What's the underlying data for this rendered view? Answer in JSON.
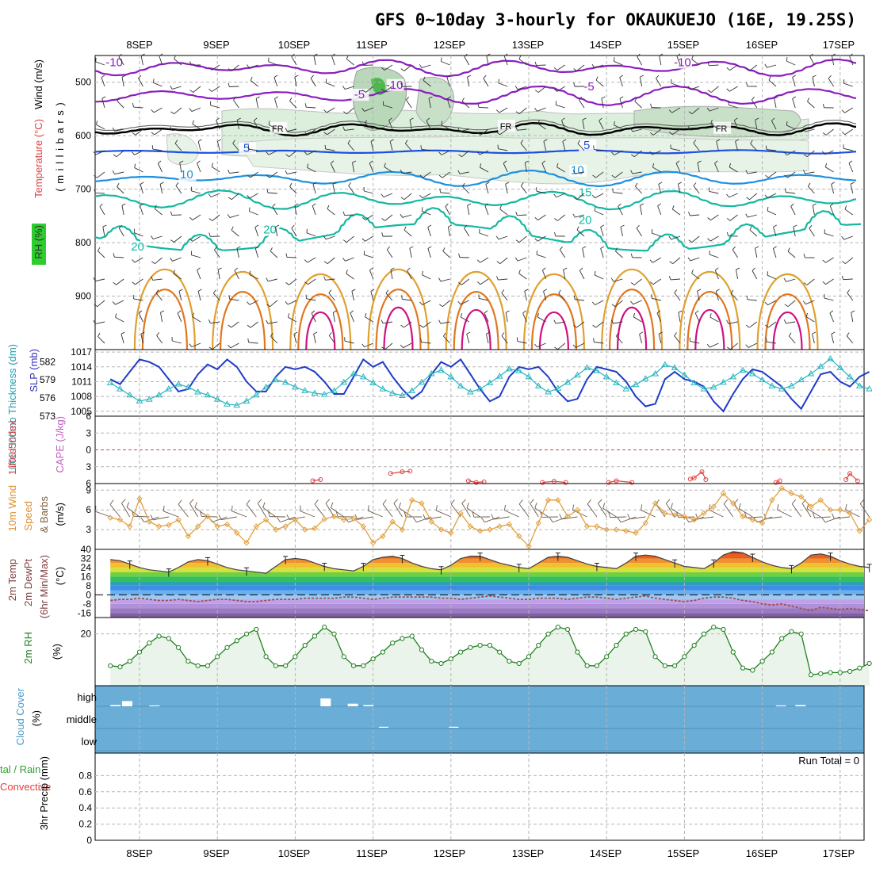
{
  "title": "GFS 0~10day 3-hourly for OKAUKUEJO (16E, 19.25S)",
  "dates": [
    "8SEP",
    "9SEP",
    "10SEP",
    "11SEP",
    "12SEP",
    "13SEP",
    "14SEP",
    "15SEP",
    "16SEP",
    "17SEP"
  ],
  "labels": {
    "upper_wind": "Wind (m/s)",
    "upper_temp": "Temperature (°C)",
    "upper_rh": "RH (%)",
    "upper_pressure": "( m i l l i b a r s )",
    "thickness": "1000-500mb Thickness (dm)",
    "slp": "SLP (mb)",
    "lifted_index": "Lifted Index",
    "cape": "CAPE (J/kg)",
    "wind10m_a": "10m Wind",
    "wind10m_b": "Speed",
    "wind10m_c": "& Barbs",
    "wind10m_unit": "(m/s)",
    "temp2m_a": "2m Temp",
    "temp2m_b": "2m DewPt",
    "temp2m_c": "(6hr Min/Max)",
    "temp2m_unit": "(°C)",
    "rh2m": "2m RH",
    "rh2m_unit": "(%)",
    "cloud": "Cloud Cover",
    "cloud_unit": "(%)",
    "precip_a": "3hr Precip (mm)",
    "precip_b": "tal / Rain",
    "precip_c": "Convective",
    "run_total": "Run Total = 0"
  },
  "colors": {
    "temp_neg10": "#8a1ec0",
    "temp_neg5": "#8a1ec0",
    "temp_0": "#000000",
    "temp_5": "#1e50e0",
    "temp_10": "#1e90e0",
    "temp_15": "#12b8a0",
    "temp_20": "#12b8a0",
    "temp_25": "#e0a030",
    "temp_30": "#e07820",
    "temp_35": "#d01080",
    "slp": "#1e3cc8",
    "thickness": "#28b4c0",
    "lifted": "#e04040",
    "wind10m": "#e0a040",
    "rh2m": "#208020",
    "cloud_bg": "#6aaed8",
    "dewpoint_line": "#a05050"
  },
  "chart_data": [
    {
      "panel": "upper_air",
      "type": "contour",
      "ylabel": "( m i l l i b a r s )",
      "y_ticks": [
        500,
        600,
        700,
        800,
        900
      ],
      "ylim": [
        1000,
        450
      ],
      "contour_labels": [
        {
          "text": "-10",
          "t": 0.05,
          "p": 470
        },
        {
          "text": "-10",
          "t": 3.65,
          "p": 512
        },
        {
          "text": "-10",
          "t": 7.35,
          "p": 470
        },
        {
          "text": "-5",
          "t": 3.2,
          "p": 530
        },
        {
          "text": "-5",
          "t": 6.15,
          "p": 515
        },
        {
          "text": "FR",
          "t": 2.15,
          "p": 592
        },
        {
          "text": "FR",
          "t": 5.08,
          "p": 588
        },
        {
          "text": "FR",
          "t": 7.85,
          "p": 592
        },
        {
          "text": "5",
          "t": 1.75,
          "p": 630
        },
        {
          "text": "5",
          "t": 6.12,
          "p": 625
        },
        {
          "text": "10",
          "t": 0.98,
          "p": 680
        },
        {
          "text": "10",
          "t": 6.0,
          "p": 672
        },
        {
          "text": "15",
          "t": 6.1,
          "p": 713
        },
        {
          "text": "20",
          "t": 2.05,
          "p": 783
        },
        {
          "text": "20",
          "t": 6.1,
          "p": 765
        },
        {
          "text": "20",
          "t": 0.35,
          "p": 815
        }
      ]
    },
    {
      "panel": "thickness_slp",
      "type": "line",
      "x": [
        0,
        0.125,
        0.25,
        0.375,
        0.5,
        0.625,
        0.75,
        0.875,
        1,
        1.125,
        1.25,
        1.375,
        1.5,
        1.625,
        1.75,
        1.875,
        2,
        2.125,
        2.25,
        2.375,
        2.5,
        2.625,
        2.75,
        2.875,
        3,
        3.125,
        3.25,
        3.375,
        3.5,
        3.625,
        3.75,
        3.875,
        4,
        4.125,
        4.25,
        4.375,
        4.5,
        4.625,
        4.75,
        4.875,
        5,
        5.125,
        5.25,
        5.375,
        5.5,
        5.625,
        5.75,
        5.875,
        6,
        6.125,
        6.25,
        6.375,
        6.5,
        6.625,
        6.75,
        6.875,
        7,
        7.125,
        7.25,
        7.375,
        7.5,
        7.625,
        7.75,
        7.875,
        8,
        8.125,
        8.25,
        8.375,
        8.5,
        8.625,
        8.75,
        8.875,
        9,
        9.125,
        9.25,
        9.375,
        9.5,
        9.625,
        9.75
      ],
      "y_ticks_left": [
        573,
        576,
        579,
        582
      ],
      "y_ticks_right": [
        1005,
        1008,
        1011,
        1014,
        1017
      ],
      "series": [
        {
          "name": "SLP (mb)",
          "axis": "right",
          "values": [
            1011.5,
            1010.5,
            1013,
            1015.5,
            1015,
            1014,
            1011.5,
            1009,
            1009.5,
            1012.5,
            1014.5,
            1013.5,
            1015.5,
            1014,
            1011,
            1009,
            1009,
            1012,
            1014,
            1013.5,
            1014,
            1013,
            1011,
            1008.5,
            1008.5,
            1012,
            1015.5,
            1014,
            1015,
            1012,
            1009.5,
            1007.5,
            1009,
            1012.5,
            1015,
            1014,
            1015.5,
            1012.5,
            1009.5,
            1007,
            1008,
            1012,
            1014,
            1013.5,
            1014,
            1012,
            1009,
            1007,
            1007.5,
            1011.5,
            1014,
            1013.5,
            1013,
            1011,
            1008,
            1006,
            1006.5,
            1011.5,
            1013,
            1011.5,
            1011,
            1010,
            1007,
            1005,
            1008.5,
            1011.5,
            1013.5,
            1013,
            1011.5,
            1010,
            1007.5,
            1005.5,
            1009,
            1012.5,
            1013,
            1011,
            1010,
            1012,
            1013
          ]
        },
        {
          "name": "1000-500mb Thickness (dm)",
          "axis": "left",
          "values": [
            578.5,
            577.5,
            576.5,
            575.5,
            575.8,
            576.5,
            577.5,
            578.3,
            577.8,
            577,
            576.5,
            575.8,
            575,
            574.8,
            575.5,
            576.5,
            577.8,
            579,
            578.6,
            577.8,
            577.2,
            576.8,
            576.6,
            577.2,
            578.6,
            580,
            579.5,
            578.5,
            577.5,
            576.8,
            576.4,
            577.2,
            578.6,
            580,
            580.6,
            579.5,
            578,
            577,
            577.5,
            578.5,
            579.6,
            580.8,
            580.5,
            579.5,
            578,
            577,
            577.6,
            578.6,
            579.8,
            581,
            580.5,
            579.5,
            578.5,
            577.5,
            578.2,
            579.2,
            580,
            581.5,
            581,
            579.8,
            578.5,
            577.5,
            577.8,
            578.6,
            579.5,
            580.6,
            580,
            579,
            578,
            577.5,
            578,
            579,
            580,
            581.2,
            582.5,
            581,
            579.5,
            578,
            577.5
          ]
        }
      ]
    },
    {
      "panel": "lifted_cape",
      "type": "line",
      "y_ticks": [
        -3,
        0,
        3,
        6
      ],
      "ylim": [
        6,
        -6
      ],
      "series": [
        {
          "name": "Lifted Index",
          "x": [
            2.6,
            2.7,
            3.6,
            3.75,
            3.85,
            4.6,
            4.7,
            4.8,
            5.55,
            5.7,
            5.85,
            6.4,
            6.5,
            6.7,
            7.45,
            7.5,
            7.6,
            7.65,
            8.55,
            8.6,
            9.45,
            9.5,
            9.6
          ],
          "values": [
            5.5,
            5.3,
            4.2,
            3.9,
            3.8,
            5.5,
            5.8,
            5.7,
            5.8,
            5.6,
            5.8,
            5.8,
            5.5,
            5.8,
            5.2,
            5.0,
            3.9,
            5.3,
            5.8,
            5.5,
            5.3,
            4.2,
            5.5
          ]
        }
      ]
    },
    {
      "panel": "wind10m",
      "type": "line",
      "y_ticks": [
        3,
        6,
        9
      ],
      "ylim": [
        0,
        10
      ],
      "x": [
        0,
        0.125,
        0.25,
        0.375,
        0.5,
        0.625,
        0.75,
        0.875,
        1,
        1.125,
        1.25,
        1.375,
        1.5,
        1.625,
        1.75,
        1.875,
        2,
        2.125,
        2.25,
        2.375,
        2.5,
        2.625,
        2.75,
        2.875,
        3,
        3.125,
        3.25,
        3.375,
        3.5,
        3.625,
        3.75,
        3.875,
        4,
        4.125,
        4.25,
        4.375,
        4.5,
        4.625,
        4.75,
        4.875,
        5,
        5.125,
        5.25,
        5.375,
        5.5,
        5.625,
        5.75,
        5.875,
        6,
        6.125,
        6.25,
        6.375,
        6.5,
        6.625,
        6.75,
        6.875,
        7,
        7.125,
        7.25,
        7.375,
        7.5,
        7.625,
        7.75,
        7.875,
        8,
        8.125,
        8.25,
        8.375,
        8.5,
        8.625,
        8.75,
        8.875,
        9,
        9.125,
        9.25,
        9.375,
        9.5,
        9.625,
        9.75
      ],
      "series": [
        {
          "name": "10m Wind Speed",
          "values": [
            4.8,
            4.5,
            3.5,
            7.7,
            4.2,
            3.5,
            3.7,
            4.5,
            2.0,
            3.5,
            5.0,
            3.5,
            3.8,
            2.5,
            1.0,
            3.5,
            4.5,
            3.0,
            3.5,
            4.5,
            3.0,
            3.2,
            4.6,
            5.0,
            4.5,
            4.7,
            3.5,
            1.0,
            2.0,
            4.2,
            3.0,
            7.5,
            7.0,
            4.2,
            3.0,
            2.5,
            5.5,
            3.5,
            2.8,
            3.0,
            3.5,
            3.8,
            2.0,
            0.5,
            4.0,
            7.5,
            7.5,
            5.0,
            6.0,
            3.5,
            3.5,
            3.0,
            3.0,
            2.8,
            2.5,
            4.0,
            7.0,
            5.5,
            5.2,
            5.0,
            4.5,
            5.5,
            6.5,
            8.5,
            7.0,
            5.0,
            4.5,
            4.0,
            7.5,
            9.3,
            8.5,
            8.0,
            6.5,
            7.5,
            6.0,
            6.0,
            5.5,
            2.8,
            4.5
          ]
        }
      ]
    },
    {
      "panel": "temp2m",
      "type": "area",
      "y_ticks": [
        -16,
        -8,
        0,
        8,
        16,
        24,
        32,
        40
      ],
      "ylim": [
        -20,
        40
      ],
      "x": [
        0,
        0.125,
        0.25,
        0.375,
        0.5,
        0.625,
        0.75,
        0.875,
        1,
        1.125,
        1.25,
        1.375,
        1.5,
        1.625,
        1.75,
        1.875,
        2,
        2.125,
        2.25,
        2.375,
        2.5,
        2.625,
        2.75,
        2.875,
        3,
        3.125,
        3.25,
        3.375,
        3.5,
        3.625,
        3.75,
        3.875,
        4,
        4.125,
        4.25,
        4.375,
        4.5,
        4.625,
        4.75,
        4.875,
        5,
        5.125,
        5.25,
        5.375,
        5.5,
        5.625,
        5.75,
        5.875,
        6,
        6.125,
        6.25,
        6.375,
        6.5,
        6.625,
        6.75,
        6.875,
        7,
        7.125,
        7.25,
        7.375,
        7.5,
        7.625,
        7.75,
        7.875,
        8,
        8.125,
        8.25,
        8.375,
        8.5,
        8.625,
        8.75,
        8.875,
        9,
        9.125,
        9.25,
        9.375,
        9.5,
        9.625,
        9.75
      ],
      "series": [
        {
          "name": "2m Temp",
          "values": [
            31,
            30,
            27,
            24,
            22,
            21,
            20,
            24,
            29,
            31,
            30,
            27,
            24,
            22,
            21,
            20,
            19,
            25,
            31,
            32,
            31,
            28,
            25,
            23,
            22,
            21,
            25,
            31,
            33,
            34,
            32,
            28,
            25,
            23,
            22,
            26,
            32,
            34,
            34,
            31,
            28,
            26,
            24,
            23,
            28,
            33,
            34,
            33,
            30,
            27,
            25,
            24,
            23,
            28,
            34,
            35,
            34,
            31,
            28,
            25,
            24,
            23,
            28,
            35,
            38,
            37,
            33,
            29,
            26,
            24,
            23,
            28,
            35,
            36,
            34,
            30,
            27,
            25,
            24
          ]
        },
        {
          "name": "2m DewPt",
          "values": [
            -5,
            -4,
            -4,
            -3,
            -4,
            -5,
            -5,
            -4,
            -5,
            -6,
            -5,
            -4,
            -4,
            -5,
            -6,
            -6,
            -5,
            -4,
            -4,
            -4,
            -3,
            -3,
            -3,
            -3,
            -2,
            -2,
            -3,
            -4,
            -3,
            -2,
            -2,
            -2,
            -2,
            -2,
            -3,
            -3,
            -4,
            -3,
            -2,
            -1,
            -2,
            -3,
            -4,
            -4,
            -3,
            -3,
            -3,
            -4,
            -3,
            -2,
            -2,
            -3,
            -4,
            -3,
            -2,
            -1,
            -3,
            -4,
            -5,
            -6,
            -5,
            -3,
            -2,
            -2,
            -3,
            -5,
            -6,
            -8,
            -9,
            -8,
            -10,
            -12,
            -14,
            -11,
            -12,
            -13,
            -12,
            -13,
            -14
          ]
        }
      ]
    },
    {
      "panel": "rh2m",
      "type": "area",
      "y_ticks": [
        20
      ],
      "ylim": [
        0,
        30
      ],
      "x": [
        0,
        0.125,
        0.25,
        0.375,
        0.5,
        0.625,
        0.75,
        0.875,
        1,
        1.125,
        1.25,
        1.375,
        1.5,
        1.625,
        1.75,
        1.875,
        2,
        2.125,
        2.25,
        2.375,
        2.5,
        2.625,
        2.75,
        2.875,
        3,
        3.125,
        3.25,
        3.375,
        3.5,
        3.625,
        3.75,
        3.875,
        4,
        4.125,
        4.25,
        4.375,
        4.5,
        4.625,
        4.75,
        4.875,
        5,
        5.125,
        5.25,
        5.375,
        5.5,
        5.625,
        5.75,
        5.875,
        6,
        6.125,
        6.25,
        6.375,
        6.5,
        6.625,
        6.75,
        6.875,
        7,
        7.125,
        7.25,
        7.375,
        7.5,
        7.625,
        7.75,
        7.875,
        8,
        8.125,
        8.25,
        8.375,
        8.5,
        8.625,
        8.75,
        8.875,
        9,
        9.125,
        9.25,
        9.375,
        9.5,
        9.625,
        9.75
      ],
      "series": [
        {
          "name": "2m RH",
          "values": [
            6,
            5.5,
            8,
            12,
            16,
            19,
            18,
            14,
            8,
            6,
            6,
            10,
            14,
            17,
            20,
            22,
            10,
            6,
            6,
            10,
            15,
            19,
            23,
            20,
            10,
            6,
            6,
            9,
            12,
            16,
            18,
            19,
            13,
            8,
            7,
            9,
            12,
            14,
            15,
            15,
            12,
            8,
            7,
            10,
            15,
            20,
            23,
            22,
            12,
            6,
            6,
            10,
            15,
            20,
            22,
            21,
            10,
            6,
            6,
            10,
            15,
            20,
            23,
            22,
            12,
            5,
            4,
            8,
            12,
            18,
            21,
            20,
            2,
            2.5,
            3,
            3,
            3.5,
            5,
            7
          ]
        }
      ]
    },
    {
      "panel": "cloud_cover",
      "type": "bar",
      "y_ticks": [
        "high",
        "middle",
        "low"
      ],
      "series": [
        {
          "name": "high",
          "x": [
            0.0,
            0.15,
            0.5,
            2.7,
            3.05,
            3.25,
            8.55,
            8.8
          ],
          "values": [
            3,
            12,
            2,
            18,
            6,
            3,
            2,
            3
          ]
        },
        {
          "name": "middle",
          "x": [
            3.45,
            4.35
          ],
          "values": [
            2,
            2
          ]
        }
      ]
    },
    {
      "panel": "precip",
      "type": "bar",
      "y_ticks": [
        0,
        0.2,
        0.4,
        0.6,
        0.8
      ],
      "ylim": [
        0,
        1
      ],
      "series": [
        {
          "name": "3hr Precip",
          "values": [
            0
          ]
        }
      ]
    }
  ]
}
